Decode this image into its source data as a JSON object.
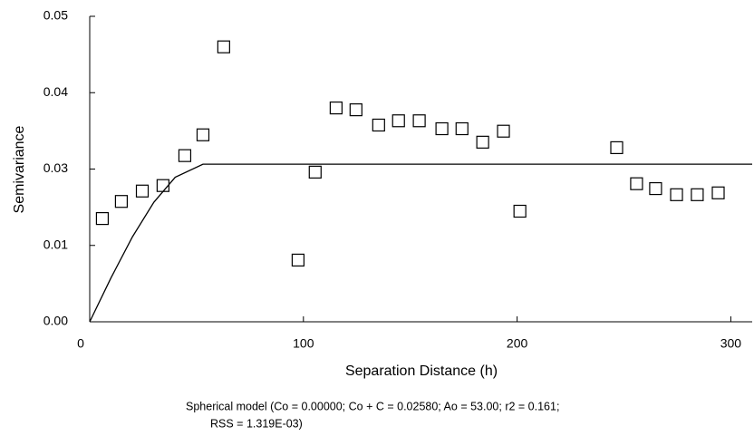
{
  "chart_data": {
    "type": "scatter",
    "x_label": "Separation Distance (h)",
    "y_label": "Semivariance",
    "caption": [
      "Spherical model (Co = 0.00000; Co + C = 0.02580; Ao = 53.00; r2 = 0.161;",
      "RSS = 1.319E-03)"
    ],
    "x": [
      5.9,
      14.8,
      24.6,
      34.3,
      44.5,
      53.0,
      62.7,
      97.5,
      105.5,
      115.3,
      124.6,
      135.2,
      144.5,
      154.2,
      164.8,
      174.2,
      183.9,
      193.6,
      201.3,
      246.6,
      255.9,
      264.8,
      274.6,
      284.3,
      294.1
    ],
    "y": [
      0.0169,
      0.0197,
      0.0214,
      0.0223,
      0.0272,
      0.0306,
      0.045,
      0.0101,
      0.0245,
      0.035,
      0.0347,
      0.0322,
      0.0329,
      0.0329,
      0.0316,
      0.0316,
      0.0294,
      0.0312,
      0.0181,
      0.0285,
      0.0226,
      0.0218,
      0.0208,
      0.0208,
      0.0211
    ],
    "color": "#000000",
    "line": {
      "x": [
        0,
        10,
        20,
        30,
        40,
        53,
        310
      ],
      "y": [
        0,
        0.00722,
        0.01391,
        0.01956,
        0.02366,
        0.0258,
        0.0258
      ],
      "color": "#000000"
    },
    "xlim": [
      0,
      310
    ],
    "ylim": [
      0,
      0.05
    ],
    "xticks": [
      0,
      100,
      200,
      300
    ],
    "yticks": [
      {
        "value": 0,
        "label": "0.00"
      },
      {
        "value": 0.0125,
        "label": "0.01"
      },
      {
        "value": 0.025,
        "label": "0.03"
      },
      {
        "value": 0.0375,
        "label": "0.04"
      },
      {
        "value": 0.05,
        "label": "0.05"
      }
    ],
    "grid": false
  }
}
